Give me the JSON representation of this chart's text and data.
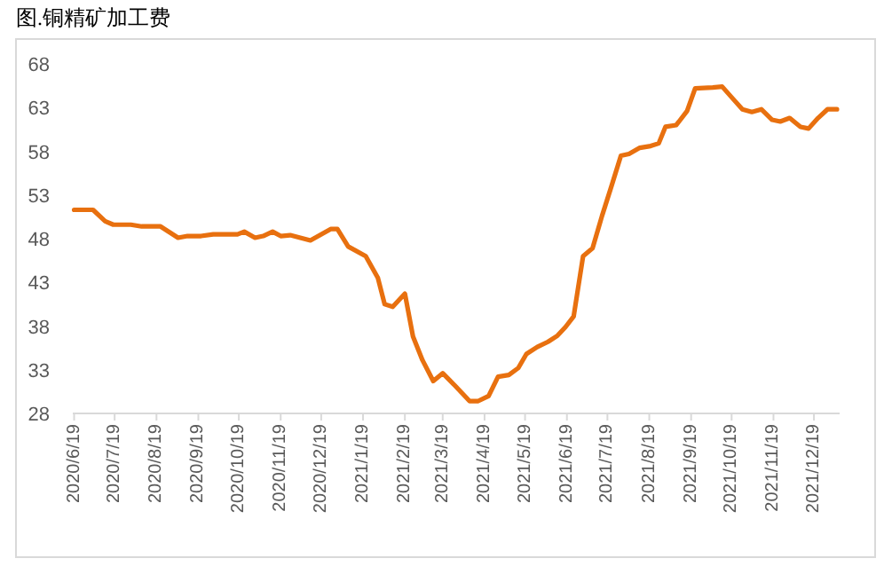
{
  "chart_data": {
    "type": "line",
    "title": "图.铜精矿加工费",
    "x": [
      "2020-06-19",
      "2020-07-03",
      "2020-07-12",
      "2020-07-18",
      "2020-07-31",
      "2020-08-08",
      "2020-08-22",
      "2020-09-04",
      "2020-09-11",
      "2020-09-21",
      "2020-09-30",
      "2020-10-18",
      "2020-10-23",
      "2020-10-31",
      "2020-11-06",
      "2020-11-13",
      "2020-11-19",
      "2020-11-26",
      "2020-12-11",
      "2020-12-26",
      "2020-12-31",
      "2021-01-08",
      "2021-01-21",
      "2021-01-30",
      "2021-02-04",
      "2021-02-10",
      "2021-02-19",
      "2021-02-25",
      "2021-03-04",
      "2021-03-12",
      "2021-03-19",
      "2021-03-28",
      "2021-04-08",
      "2021-04-14",
      "2021-04-22",
      "2021-04-29",
      "2021-05-07",
      "2021-05-14",
      "2021-05-20",
      "2021-05-28",
      "2021-06-05",
      "2021-06-12",
      "2021-06-18",
      "2021-06-24",
      "2021-07-01",
      "2021-07-08",
      "2021-07-15",
      "2021-07-22",
      "2021-07-29",
      "2021-08-04",
      "2021-08-12",
      "2021-08-20",
      "2021-08-26",
      "2021-08-31",
      "2021-09-08",
      "2021-09-16",
      "2021-09-22",
      "2021-10-05",
      "2021-10-12",
      "2021-10-20",
      "2021-10-27",
      "2021-11-03",
      "2021-11-10",
      "2021-11-18",
      "2021-11-24",
      "2021-12-01",
      "2021-12-09",
      "2021-12-15",
      "2021-12-22",
      "2021-12-29",
      "2022-01-05"
    ],
    "series": [
      {
        "color": "#e8700f",
        "values": [
          51.3,
          51.3,
          50.0,
          49.6,
          49.6,
          49.4,
          49.4,
          48.1,
          48.3,
          48.3,
          48.5,
          48.5,
          48.8,
          48.1,
          48.3,
          48.8,
          48.3,
          48.4,
          47.8,
          49.1,
          49.1,
          47.1,
          46.0,
          43.5,
          40.5,
          40.2,
          41.7,
          36.8,
          34.1,
          31.7,
          32.6,
          31.2,
          29.4,
          29.4,
          30.0,
          32.2,
          32.4,
          33.2,
          34.8,
          35.6,
          36.2,
          36.9,
          37.9,
          39.1,
          46.0,
          46.9,
          50.6,
          54.0,
          57.5,
          57.7,
          58.4,
          58.6,
          58.9,
          60.8,
          61.0,
          62.6,
          65.2,
          65.3,
          65.4,
          64.0,
          62.8,
          62.5,
          62.8,
          61.6,
          61.4,
          61.8,
          60.8,
          60.6,
          61.8,
          62.8,
          62.8
        ]
      }
    ],
    "xlim": [
      "2020-06-18",
      "2022-01-07"
    ],
    "xticks": [
      {
        "value": "2020-06-19",
        "label": "2020/6/19"
      },
      {
        "value": "2020-07-19",
        "label": "2020/7/19"
      },
      {
        "value": "2020-08-19",
        "label": "2020/8/19"
      },
      {
        "value": "2020-09-19",
        "label": "2020/9/19"
      },
      {
        "value": "2020-10-19",
        "label": "2020/10/19"
      },
      {
        "value": "2020-11-19",
        "label": "2020/11/19"
      },
      {
        "value": "2020-12-19",
        "label": "2020/12/19"
      },
      {
        "value": "2021-01-19",
        "label": "2021/1/19"
      },
      {
        "value": "2021-02-19",
        "label": "2021/2/19"
      },
      {
        "value": "2021-03-19",
        "label": "2021/3/19"
      },
      {
        "value": "2021-04-19",
        "label": "2021/4/19"
      },
      {
        "value": "2021-05-19",
        "label": "2021/5/19"
      },
      {
        "value": "2021-06-19",
        "label": "2021/6/19"
      },
      {
        "value": "2021-07-19",
        "label": "2021/7/19"
      },
      {
        "value": "2021-08-19",
        "label": "2021/8/19"
      },
      {
        "value": "2021-09-19",
        "label": "2021/9/19"
      },
      {
        "value": "2021-10-19",
        "label": "2021/10/19"
      },
      {
        "value": "2021-11-19",
        "label": "2021/11/19"
      },
      {
        "value": "2021-12-19",
        "label": "2021/12/19"
      }
    ],
    "ylim": [
      28,
      68
    ],
    "yticks": [
      28,
      33,
      38,
      43,
      48,
      53,
      58,
      63,
      68
    ],
    "marker": "none",
    "line_style": "solid"
  }
}
